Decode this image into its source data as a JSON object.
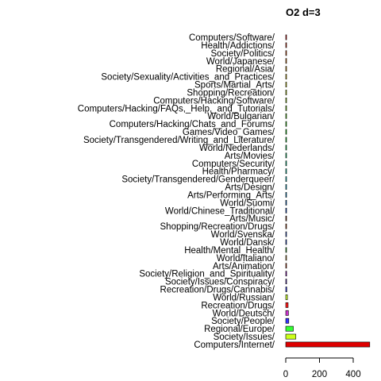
{
  "chart_data": {
    "type": "bar",
    "orientation": "horizontal",
    "title": "O2 d=3",
    "xlabel": "",
    "ylabel": "",
    "xlim": [
      0,
      500
    ],
    "xticks": [
      0,
      200,
      400
    ],
    "grid": false,
    "legend": "none",
    "categories": [
      "Computers/Software/",
      "Health/Addictions/",
      "Society/Politics/",
      "World/Japanese/",
      "Regional/Asia/",
      "Society/Sexuality/Activities_and_Practices/",
      "Sports/Martial_Arts/",
      "Shopping/Recreation/",
      "Computers/Hacking/Software/",
      "Computers/Hacking/FAQs,_Help,_and_Tutorials/",
      "World/Bulgarian/",
      "Computers/Hacking/Chats_and_Forums/",
      "Games/Video_Games/",
      "Society/Transgendered/Writing_and_Literature/",
      "World/Nederlands/",
      "Arts/Movies/",
      "Computers/Security/",
      "Health/Pharmacy/",
      "Society/Transgendered/Genderqueer/",
      "Arts/Design/",
      "Arts/Performing_Arts/",
      "World/Suomi/",
      "World/Chinese_Traditional/",
      "Arts/Music/",
      "Shopping/Recreation/Drugs/",
      "World/Svenska/",
      "World/Dansk/",
      "Health/Mental_Health/",
      "World/Italiano/",
      "Arts/Animation/",
      "Society/Religion_and_Spirituality/",
      "Society/Issues/Conspiracy/",
      "Recreation/Drugs/Cannabis/",
      "World/Russian/",
      "Recreation/Drugs/",
      "World/Deutsch/",
      "Society/People/",
      "Regional/Europe/",
      "Society/Issues/",
      "Computers/Internet/"
    ],
    "values": [
      1,
      1,
      1,
      1,
      1,
      1,
      1,
      1,
      1,
      1,
      1,
      1,
      1,
      1,
      1,
      1,
      1,
      1,
      1,
      1,
      1,
      1,
      2,
      2,
      2,
      3,
      3,
      3,
      3,
      4,
      5,
      5,
      6,
      10,
      14,
      16,
      18,
      45,
      60,
      498
    ],
    "colors": [
      "#FF0000",
      "#FF2A00",
      "#FF5500",
      "#FF8000",
      "#FFAA00",
      "#FFD500",
      "#FFFF00",
      "#D5FF00",
      "#AAFF00",
      "#80FF00",
      "#55FF00",
      "#2AFF00",
      "#00FF00",
      "#00FF2A",
      "#00FF55",
      "#00FF80",
      "#00FFAA",
      "#00FFD5",
      "#00FFFF",
      "#00D5FF",
      "#00AAFF",
      "#0080FF",
      "#0055FF",
      "#802A00",
      "#C04000",
      "#3366FF",
      "#1A4DFF",
      "#20C020",
      "#CC9933",
      "#CC3300",
      "#9900CC",
      "#6633CC",
      "#2A33FF",
      "#CCFF33",
      "#FF1A1A",
      "#CC33CC",
      "#3333FF",
      "#33FF33",
      "#CCFF1A",
      "#DD0000"
    ]
  }
}
